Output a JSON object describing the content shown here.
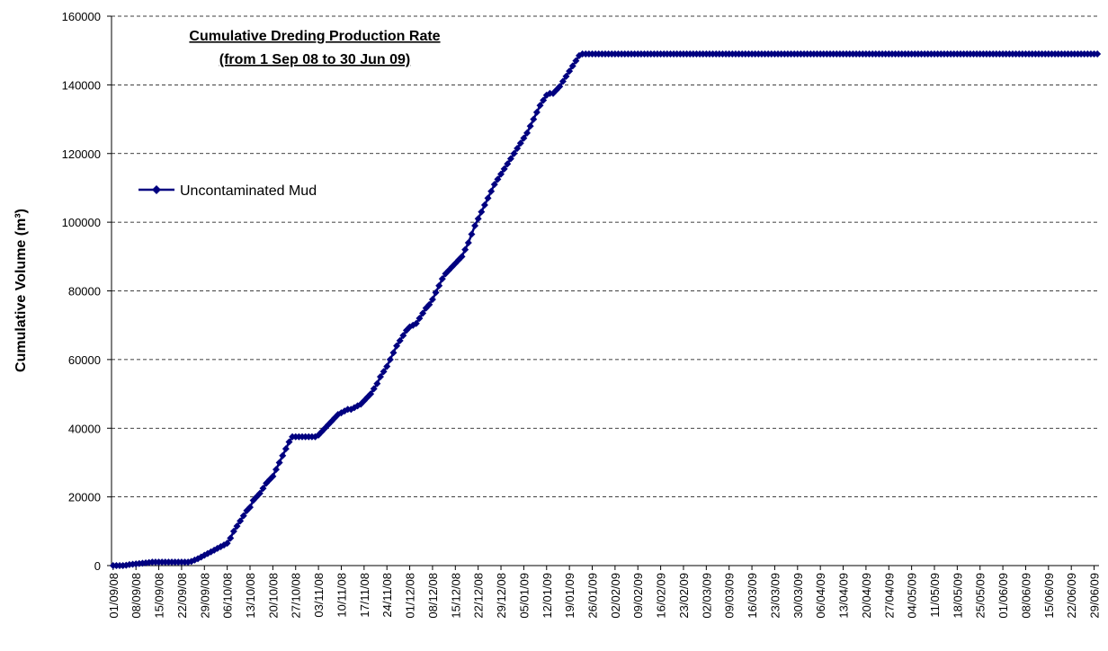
{
  "chart_data": {
    "type": "line",
    "title": "Cumulative Dreding Production Rate",
    "subtitle": "(from 1 Sep 08 to 30 Jun 09)",
    "ylabel": "Cumulative Volume (m³)",
    "ylim": [
      0,
      160000
    ],
    "yticks": [
      0,
      20000,
      40000,
      60000,
      80000,
      100000,
      120000,
      140000,
      160000
    ],
    "grid": true,
    "legend": "left",
    "categories": [
      "01/09/08",
      null,
      null,
      null,
      null,
      null,
      null,
      "08/09/08",
      null,
      null,
      null,
      null,
      null,
      null,
      "15/09/08",
      null,
      null,
      null,
      null,
      null,
      null,
      "22/09/08",
      null,
      null,
      null,
      null,
      null,
      null,
      "29/09/08",
      null,
      null,
      null,
      null,
      null,
      null,
      "06/10/08",
      null,
      null,
      null,
      null,
      null,
      null,
      "13/10/08",
      null,
      null,
      null,
      null,
      null,
      null,
      "20/10/08",
      null,
      null,
      null,
      null,
      null,
      null,
      "27/10/08",
      null,
      null,
      null,
      null,
      null,
      null,
      "03/11/08",
      null,
      null,
      null,
      null,
      null,
      null,
      "10/11/08",
      null,
      null,
      null,
      null,
      null,
      null,
      "17/11/08",
      null,
      null,
      null,
      null,
      null,
      null,
      "24/11/08",
      null,
      null,
      null,
      null,
      null,
      null,
      "01/12/08",
      null,
      null,
      null,
      null,
      null,
      null,
      "08/12/08",
      null,
      null,
      null,
      null,
      null,
      null,
      "15/12/08",
      null,
      null,
      null,
      null,
      null,
      null,
      "22/12/08",
      null,
      null,
      null,
      null,
      null,
      null,
      "29/12/08",
      null,
      null,
      null,
      null,
      null,
      null,
      "05/01/09",
      null,
      null,
      null,
      null,
      null,
      null,
      "12/01/09",
      null,
      null,
      null,
      null,
      null,
      null,
      "19/01/09",
      null,
      null,
      null,
      null,
      null,
      null,
      "26/01/09",
      null,
      null,
      null,
      null,
      null,
      null,
      "02/02/09",
      null,
      null,
      null,
      null,
      null,
      null,
      "09/02/09",
      null,
      null,
      null,
      null,
      null,
      null,
      "16/02/09",
      null,
      null,
      null,
      null,
      null,
      null,
      "23/02/09",
      null,
      null,
      null,
      null,
      null,
      null,
      "02/03/09",
      null,
      null,
      null,
      null,
      null,
      null,
      "09/03/09",
      null,
      null,
      null,
      null,
      null,
      null,
      "16/03/09",
      null,
      null,
      null,
      null,
      null,
      null,
      "23/03/09",
      null,
      null,
      null,
      null,
      null,
      null,
      "30/03/09",
      null,
      null,
      null,
      null,
      null,
      null,
      "06/04/09",
      null,
      null,
      null,
      null,
      null,
      null,
      "13/04/09",
      null,
      null,
      null,
      null,
      null,
      null,
      "20/04/09",
      null,
      null,
      null,
      null,
      null,
      null,
      "27/04/09",
      null,
      null,
      null,
      null,
      null,
      null,
      "04/05/09",
      null,
      null,
      null,
      null,
      null,
      null,
      "11/05/09",
      null,
      null,
      null,
      null,
      null,
      null,
      "18/05/09",
      null,
      null,
      null,
      null,
      null,
      null,
      "25/05/09",
      null,
      null,
      null,
      null,
      null,
      null,
      "01/06/09",
      null,
      null,
      null,
      null,
      null,
      null,
      "08/06/09",
      null,
      null,
      null,
      null,
      null,
      null,
      "15/06/09",
      null,
      null,
      null,
      null,
      null,
      null,
      "22/06/09",
      null,
      null,
      null,
      null,
      null,
      null,
      "29/06/09",
      null
    ],
    "series": [
      {
        "name": "Uncontaminated Mud",
        "color": "#000080",
        "values": [
          0,
          0,
          0,
          0,
          100,
          300,
          400,
          500,
          600,
          700,
          800,
          900,
          1000,
          1000,
          1000,
          1000,
          1000,
          1000,
          1000,
          1000,
          1000,
          1000,
          1000,
          1000,
          1200,
          1600,
          2000,
          2500,
          3000,
          3500,
          4000,
          4500,
          5000,
          5500,
          6000,
          6500,
          8000,
          10000,
          11500,
          13000,
          14500,
          16000,
          17000,
          19000,
          20000,
          21000,
          22500,
          24000,
          25000,
          26000,
          28000,
          30000,
          32000,
          34000,
          36000,
          37500,
          37500,
          37500,
          37500,
          37500,
          37500,
          37500,
          37500,
          38000,
          39000,
          40000,
          41000,
          42000,
          43000,
          44000,
          44500,
          45000,
          45500,
          45500,
          46000,
          46500,
          47000,
          48000,
          49000,
          50000,
          51500,
          53000,
          55000,
          56500,
          58000,
          60000,
          62000,
          64000,
          65500,
          67000,
          68500,
          69500,
          70000,
          70500,
          72000,
          73500,
          75000,
          76000,
          77500,
          79500,
          81500,
          83500,
          85000,
          86000,
          87000,
          88000,
          89000,
          90000,
          92000,
          94000,
          96500,
          99000,
          101000,
          103000,
          105000,
          107000,
          109000,
          111000,
          112500,
          114000,
          115500,
          117000,
          118500,
          120000,
          121500,
          123000,
          124500,
          126000,
          128000,
          130000,
          132000,
          134000,
          135500,
          137000,
          137500,
          137500,
          138500,
          139500,
          141000,
          142500,
          144000,
          145500,
          147000,
          148500,
          149000,
          149000,
          149000,
          149000,
          149000,
          149000,
          149000,
          149000,
          149000,
          149000,
          149000,
          149000,
          149000,
          149000,
          149000,
          149000,
          149000,
          149000,
          149000,
          149000,
          149000,
          149000,
          149000,
          149000,
          149000,
          149000,
          149000,
          149000,
          149000,
          149000,
          149000,
          149000,
          149000,
          149000,
          149000,
          149000,
          149000,
          149000,
          149000,
          149000,
          149000,
          149000,
          149000,
          149000,
          149000,
          149000,
          149000,
          149000,
          149000,
          149000,
          149000,
          149000,
          149000,
          149000,
          149000,
          149000,
          149000,
          149000,
          149000,
          149000,
          149000,
          149000,
          149000,
          149000,
          149000,
          149000,
          149000,
          149000,
          149000,
          149000,
          149000,
          149000,
          149000,
          149000,
          149000,
          149000,
          149000,
          149000,
          149000,
          149000,
          149000,
          149000,
          149000,
          149000,
          149000,
          149000,
          149000,
          149000,
          149000,
          149000,
          149000,
          149000,
          149000,
          149000,
          149000,
          149000,
          149000,
          149000,
          149000,
          149000,
          149000,
          149000,
          149000,
          149000,
          149000,
          149000,
          149000,
          149000,
          149000,
          149000,
          149000,
          149000,
          149000,
          149000,
          149000,
          149000,
          149000,
          149000,
          149000,
          149000,
          149000,
          149000,
          149000,
          149000,
          149000,
          149000,
          149000,
          149000,
          149000,
          149000,
          149000,
          149000,
          149000,
          149000,
          149000,
          149000,
          149000,
          149000,
          149000,
          149000,
          149000,
          149000,
          149000,
          149000,
          149000,
          149000,
          149000,
          149000,
          149000,
          149000,
          149000,
          149000,
          149000,
          149000,
          149000,
          149000,
          149000,
          149000,
          149000
        ]
      }
    ]
  }
}
